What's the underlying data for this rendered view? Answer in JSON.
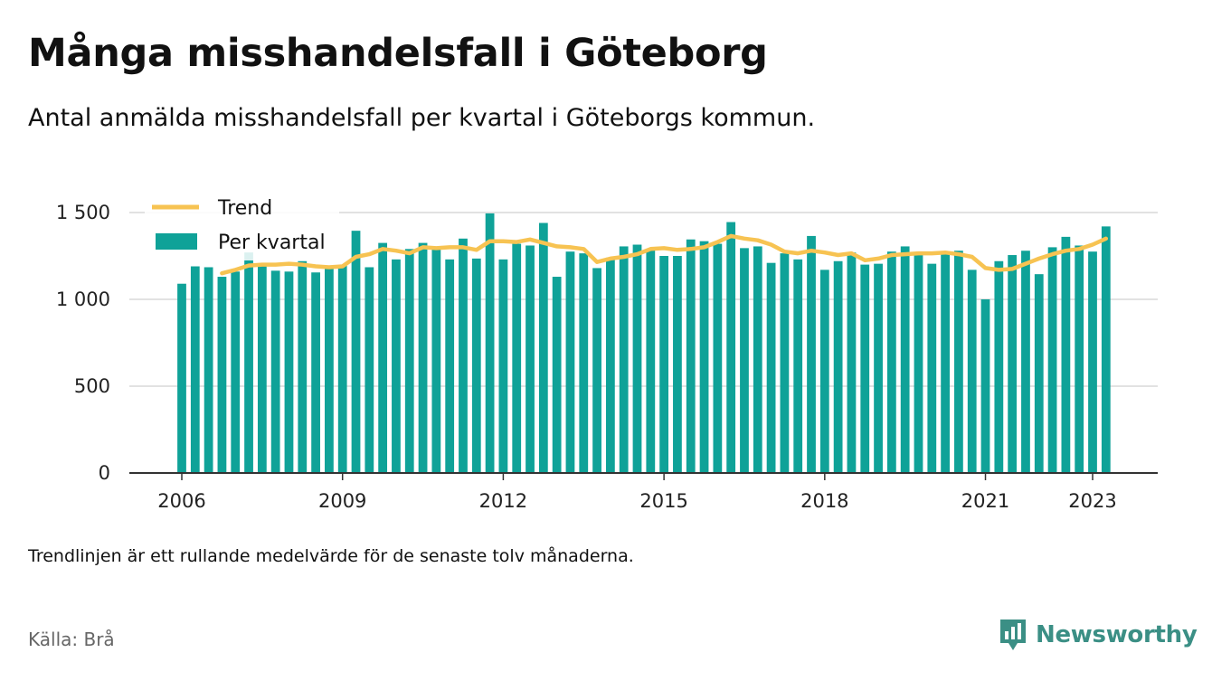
{
  "title": "Många misshandelsfall i Göteborg",
  "subtitle": "Antal anmälda misshandelsfall per kvartal i Göteborgs kommun.",
  "footnote": "Trendlinjen är ett rullande medelvärde för de senaste tolv månaderna.",
  "source": "Källa: Brå",
  "brand": "Newsworthy",
  "chart_data": {
    "type": "bar",
    "colors": {
      "bar": "#0fa298",
      "trend": "#f7c352",
      "grid": "#d9d9d9",
      "axis": "#333333"
    },
    "ylim": [
      0,
      1500
    ],
    "yticks": [
      0,
      500,
      1000,
      1500
    ],
    "ytick_labels": [
      "0",
      "500",
      "1 000",
      "1 500"
    ],
    "xlim": [
      2006.0,
      2024.25
    ],
    "xticks": [
      2006,
      2009,
      2012,
      2015,
      2018,
      2021,
      2023
    ],
    "xtick_labels": [
      "2006",
      "2009",
      "2012",
      "2015",
      "2018",
      "2021",
      "2023"
    ],
    "grid": true,
    "legend": {
      "position": "top-left",
      "entries": [
        {
          "label": "Trend",
          "kind": "line"
        },
        {
          "label": "Per kvartal",
          "kind": "bar"
        }
      ]
    },
    "series": [
      {
        "name": "Per kvartal",
        "kind": "bar",
        "x": [
          "2006Q1",
          "2006Q2",
          "2006Q3",
          "2006Q4",
          "2007Q1",
          "2007Q2",
          "2007Q3",
          "2007Q4",
          "2008Q1",
          "2008Q2",
          "2008Q3",
          "2008Q4",
          "2009Q1",
          "2009Q2",
          "2009Q3",
          "2009Q4",
          "2010Q1",
          "2010Q2",
          "2010Q3",
          "2010Q4",
          "2011Q1",
          "2011Q2",
          "2011Q3",
          "2011Q4",
          "2012Q1",
          "2012Q2",
          "2012Q3",
          "2012Q4",
          "2013Q1",
          "2013Q2",
          "2013Q3",
          "2013Q4",
          "2014Q1",
          "2014Q2",
          "2014Q3",
          "2014Q4",
          "2015Q1",
          "2015Q2",
          "2015Q3",
          "2015Q4",
          "2016Q1",
          "2016Q2",
          "2016Q3",
          "2016Q4",
          "2017Q1",
          "2017Q2",
          "2017Q3",
          "2017Q4",
          "2018Q1",
          "2018Q2",
          "2018Q3",
          "2018Q4",
          "2019Q1",
          "2019Q2",
          "2019Q3",
          "2019Q4",
          "2020Q1",
          "2020Q2",
          "2020Q3",
          "2020Q4",
          "2021Q1",
          "2021Q2",
          "2021Q3",
          "2021Q4",
          "2022Q1",
          "2022Q2",
          "2022Q3",
          "2022Q4",
          "2023Q1",
          "2023Q2"
        ],
        "values": [
          1090,
          1190,
          1185,
          1130,
          1160,
          1270,
          1195,
          1165,
          1160,
          1220,
          1155,
          1185,
          1195,
          1395,
          1185,
          1325,
          1230,
          1290,
          1325,
          1295,
          1230,
          1350,
          1235,
          1495,
          1230,
          1320,
          1310,
          1440,
          1130,
          1275,
          1265,
          1180,
          1240,
          1305,
          1315,
          1285,
          1250,
          1250,
          1345,
          1335,
          1320,
          1445,
          1295,
          1305,
          1210,
          1265,
          1230,
          1365,
          1170,
          1220,
          1270,
          1200,
          1205,
          1275,
          1305,
          1265,
          1205,
          1270,
          1280,
          1170,
          1000,
          1220,
          1255,
          1280,
          1145,
          1300,
          1360,
          1310,
          1275,
          1420
        ]
      },
      {
        "name": "Trend",
        "kind": "line",
        "x": [
          "2006Q4",
          "2007Q1",
          "2007Q2",
          "2007Q3",
          "2007Q4",
          "2008Q1",
          "2008Q2",
          "2008Q3",
          "2008Q4",
          "2009Q1",
          "2009Q2",
          "2009Q3",
          "2009Q4",
          "2010Q1",
          "2010Q2",
          "2010Q3",
          "2010Q4",
          "2011Q1",
          "2011Q2",
          "2011Q3",
          "2011Q4",
          "2012Q1",
          "2012Q2",
          "2012Q3",
          "2012Q4",
          "2013Q1",
          "2013Q2",
          "2013Q3",
          "2013Q4",
          "2014Q1",
          "2014Q2",
          "2014Q3",
          "2014Q4",
          "2015Q1",
          "2015Q2",
          "2015Q3",
          "2015Q4",
          "2016Q1",
          "2016Q2",
          "2016Q3",
          "2016Q4",
          "2017Q1",
          "2017Q2",
          "2017Q3",
          "2017Q4",
          "2018Q1",
          "2018Q2",
          "2018Q3",
          "2018Q4",
          "2019Q1",
          "2019Q2",
          "2019Q3",
          "2019Q4",
          "2020Q1",
          "2020Q2",
          "2020Q3",
          "2020Q4",
          "2021Q1",
          "2021Q2",
          "2021Q3",
          "2021Q4",
          "2022Q1",
          "2022Q2",
          "2022Q3",
          "2022Q4",
          "2023Q1",
          "2023Q2"
        ],
        "values": [
          1150,
          1170,
          1195,
          1200,
          1200,
          1205,
          1200,
          1190,
          1185,
          1190,
          1245,
          1260,
          1290,
          1280,
          1265,
          1300,
          1295,
          1300,
          1300,
          1285,
          1335,
          1335,
          1330,
          1345,
          1325,
          1305,
          1300,
          1290,
          1215,
          1235,
          1245,
          1260,
          1290,
          1295,
          1285,
          1290,
          1300,
          1330,
          1365,
          1350,
          1340,
          1315,
          1275,
          1265,
          1280,
          1270,
          1255,
          1265,
          1225,
          1235,
          1255,
          1260,
          1265,
          1265,
          1270,
          1260,
          1245,
          1180,
          1170,
          1175,
          1205,
          1235,
          1260,
          1280,
          1290,
          1315,
          1350
        ]
      }
    ]
  }
}
